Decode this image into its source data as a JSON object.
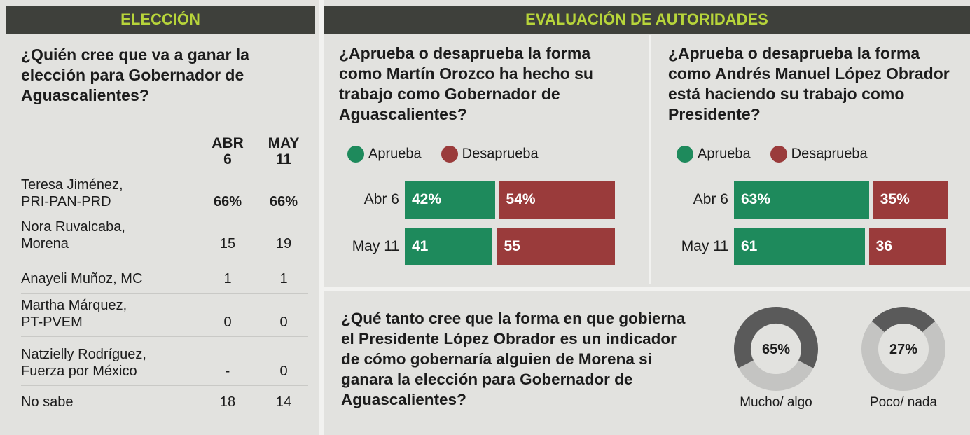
{
  "election": {
    "header": "ELECCIÓN",
    "question": "¿Quién cree que va a ganar la elección para Gobernador de Aguascalientes?",
    "columns": [
      [
        "ABR",
        "6"
      ],
      [
        "MAY",
        "11"
      ]
    ],
    "rows": [
      {
        "name": [
          "Teresa Jiménez,",
          "PRI-PAN-PRD"
        ],
        "cells": [
          "66%",
          "66%"
        ]
      },
      {
        "name": [
          "Nora Ruvalcaba,",
          "Morena"
        ],
        "cells": [
          "15",
          "19"
        ]
      },
      {
        "name": [
          "Anayeli Muñoz, MC"
        ],
        "cells": [
          "1",
          "1"
        ]
      },
      {
        "name": [
          "Martha Márquez,",
          "PT-PVEM"
        ],
        "cells": [
          "0",
          "0"
        ]
      },
      {
        "name": [
          "Natzielly Rodríguez,",
          "Fuerza por México"
        ],
        "cells": [
          "-",
          "0"
        ]
      },
      {
        "name": [
          "No sabe"
        ],
        "cells": [
          "18",
          "14"
        ]
      }
    ]
  },
  "evaluation_header": "EVALUACIÓN DE AUTORIDADES",
  "chart_data": [
    {
      "type": "bar",
      "title": "¿Aprueba o desaprueba la forma como Martín Orozco ha hecho su trabajo como Gobernador de Aguascalientes?",
      "categories": [
        "Abr 6",
        "May 11"
      ],
      "series": [
        {
          "name": "Aprueba",
          "color": "#1e8a5c",
          "values": [
            42,
            41
          ],
          "value_labels": [
            "42%",
            "41"
          ]
        },
        {
          "name": "Desaprueba",
          "color": "#9a3b3b",
          "values": [
            54,
            55
          ],
          "value_labels": [
            "54%",
            "55"
          ]
        }
      ]
    },
    {
      "type": "bar",
      "title": "¿Aprueba o desaprueba la forma como Andrés Manuel López Obrador está haciendo su trabajo como Presidente?",
      "categories": [
        "Abr 6",
        "May 11"
      ],
      "series": [
        {
          "name": "Aprueba",
          "color": "#1e8a5c",
          "values": [
            63,
            61
          ],
          "value_labels": [
            "63%",
            "61"
          ]
        },
        {
          "name": "Desaprueba",
          "color": "#9a3b3b",
          "values": [
            35,
            36
          ],
          "value_labels": [
            "35%",
            "36"
          ]
        }
      ]
    },
    {
      "type": "pie",
      "title": "¿Qué tanto cree que la forma en que gobierna el Presidente López Obrador es un indicador de cómo gobernaría alguien de Morena si ganara la elección para Gobernador de Aguascalientes?",
      "categories": [
        "Mucho/ algo",
        "Poco/ nada"
      ],
      "values": [
        65,
        27
      ],
      "value_labels": [
        "65%",
        "27%"
      ],
      "color": "#5a5a5a"
    }
  ]
}
